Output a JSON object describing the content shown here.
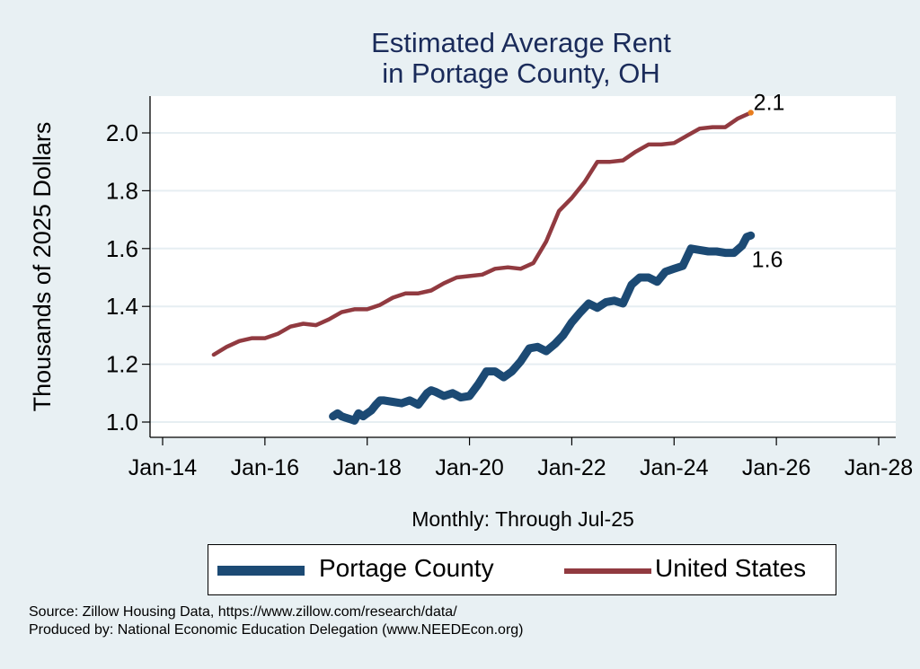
{
  "chart_data": {
    "type": "line",
    "title": [
      "Estimated Average Rent",
      "in Portage County, OH"
    ],
    "xlabel": "Monthly: Through Jul-25",
    "ylabel": "Thousands of 2025 Dollars",
    "xlim": [
      2014,
      2028
    ],
    "ylim": [
      0.95,
      2.13
    ],
    "x_ticks": [
      2014,
      2016,
      2018,
      2020,
      2022,
      2024,
      2026,
      2028
    ],
    "x_tick_labels": [
      "Jan-14",
      "Jan-16",
      "Jan-18",
      "Jan-20",
      "Jan-22",
      "Jan-24",
      "Jan-26",
      "Jan-28"
    ],
    "y_ticks": [
      1.0,
      1.2,
      1.4,
      1.6,
      1.8,
      2.0
    ],
    "y_tick_labels": [
      "1.0",
      "1.2",
      "1.4",
      "1.6",
      "1.8",
      "2.0"
    ],
    "grid": true,
    "legend_position": "bottom",
    "series": [
      {
        "name": "Portage County",
        "color": "#1c4a74",
        "end_label": "1.6",
        "x": [
          2017.33,
          2017.42,
          2017.5,
          2017.58,
          2017.67,
          2017.75,
          2017.83,
          2017.92,
          2018.0,
          2018.08,
          2018.17,
          2018.25,
          2018.33,
          2018.5,
          2018.67,
          2018.83,
          2019.0,
          2019.17,
          2019.25,
          2019.33,
          2019.5,
          2019.67,
          2019.83,
          2020.0,
          2020.17,
          2020.33,
          2020.5,
          2020.67,
          2020.83,
          2021.0,
          2021.17,
          2021.33,
          2021.5,
          2021.67,
          2021.83,
          2022.0,
          2022.17,
          2022.33,
          2022.5,
          2022.67,
          2022.83,
          2023.0,
          2023.17,
          2023.33,
          2023.5,
          2023.67,
          2023.83,
          2024.0,
          2024.17,
          2024.33,
          2024.5,
          2024.67,
          2024.83,
          2025.0,
          2025.17,
          2025.33,
          2025.42,
          2025.5
        ],
        "y": [
          1.02,
          1.03,
          1.02,
          1.015,
          1.01,
          1.005,
          1.03,
          1.02,
          1.03,
          1.04,
          1.06,
          1.075,
          1.075,
          1.07,
          1.065,
          1.075,
          1.06,
          1.1,
          1.11,
          1.105,
          1.09,
          1.1,
          1.085,
          1.09,
          1.13,
          1.175,
          1.175,
          1.155,
          1.175,
          1.21,
          1.255,
          1.26,
          1.245,
          1.27,
          1.3,
          1.345,
          1.38,
          1.41,
          1.395,
          1.415,
          1.42,
          1.41,
          1.475,
          1.5,
          1.5,
          1.485,
          1.52,
          1.53,
          1.54,
          1.6,
          1.595,
          1.59,
          1.59,
          1.585,
          1.585,
          1.61,
          1.64,
          1.645
        ]
      },
      {
        "name": "United States",
        "color": "#913a40",
        "end_label": "2.1",
        "end_marker_color": "#e87d1e",
        "x": [
          2015.0,
          2015.25,
          2015.5,
          2015.75,
          2016.0,
          2016.25,
          2016.5,
          2016.75,
          2017.0,
          2017.25,
          2017.5,
          2017.75,
          2018.0,
          2018.25,
          2018.5,
          2018.75,
          2019.0,
          2019.25,
          2019.5,
          2019.75,
          2020.0,
          2020.25,
          2020.5,
          2020.75,
          2021.0,
          2021.25,
          2021.5,
          2021.75,
          2022.0,
          2022.25,
          2022.5,
          2022.75,
          2023.0,
          2023.25,
          2023.5,
          2023.75,
          2024.0,
          2024.25,
          2024.5,
          2024.75,
          2025.0,
          2025.25,
          2025.5
        ],
        "y": [
          1.233,
          1.26,
          1.28,
          1.29,
          1.29,
          1.305,
          1.33,
          1.34,
          1.335,
          1.355,
          1.38,
          1.39,
          1.39,
          1.405,
          1.43,
          1.445,
          1.445,
          1.455,
          1.48,
          1.5,
          1.505,
          1.51,
          1.53,
          1.535,
          1.53,
          1.55,
          1.625,
          1.73,
          1.775,
          1.83,
          1.9,
          1.9,
          1.905,
          1.935,
          1.96,
          1.96,
          1.965,
          1.99,
          2.015,
          2.02,
          2.02,
          2.05,
          2.07
        ]
      }
    ]
  },
  "footer": {
    "source": "Source: Zillow Housing Data, https://www.zillow.com/research/data/",
    "produced_by": "Produced by: National Economic Education Delegation (www.NEEDEcon.org)"
  }
}
